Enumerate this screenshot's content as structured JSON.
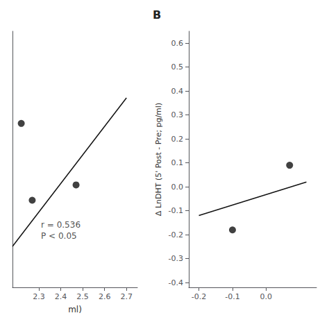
{
  "chart_data": [
    {
      "type": "scatter",
      "xlabel": "ml)",
      "series": [
        {
          "type": "scatter",
          "x": [
            2.22,
            2.27,
            2.47
          ],
          "values": [
            0.37,
            0.22,
            0.25
          ],
          "color": "#111111"
        },
        {
          "type": "line",
          "x": [
            2.18,
            2.7
          ],
          "values": [
            0.13,
            0.42
          ],
          "color": "#111111"
        }
      ],
      "xlim": [
        2.18,
        2.75
      ],
      "ylim": [
        0.05,
        0.55
      ],
      "xticks": [
        2.3,
        2.4,
        2.5,
        2.6,
        2.7
      ],
      "yticks": [],
      "tick_labels": "x",
      "grid": false,
      "annotations": [
        {
          "text": "r = 0.536\nP < 0.05",
          "x": 2.31,
          "y": 0.14
        }
      ]
    },
    {
      "type": "scatter",
      "title": "B",
      "ylabel": "Δ LnDHT (5' Post - Pre; pg/ml)",
      "series": [
        {
          "type": "scatter",
          "x": [
            -0.1,
            0.07
          ],
          "values": [
            -0.18,
            0.09
          ],
          "color": "#111111"
        },
        {
          "type": "line",
          "x": [
            -0.2,
            0.12
          ],
          "values": [
            -0.12,
            0.02
          ],
          "color": "#111111"
        }
      ],
      "xlim": [
        -0.23,
        0.15
      ],
      "ylim": [
        -0.42,
        0.65
      ],
      "xticks": [
        -0.2,
        -0.1,
        {
          "value": 0,
          "label": "0.0"
        }
      ],
      "yticks": [
        0.6,
        0.5,
        0.4,
        0.3,
        0.2,
        0.1,
        {
          "value": 0,
          "label": "0.0"
        },
        -0.1,
        -0.2,
        -0.3,
        -0.4
      ],
      "grid": false
    }
  ]
}
